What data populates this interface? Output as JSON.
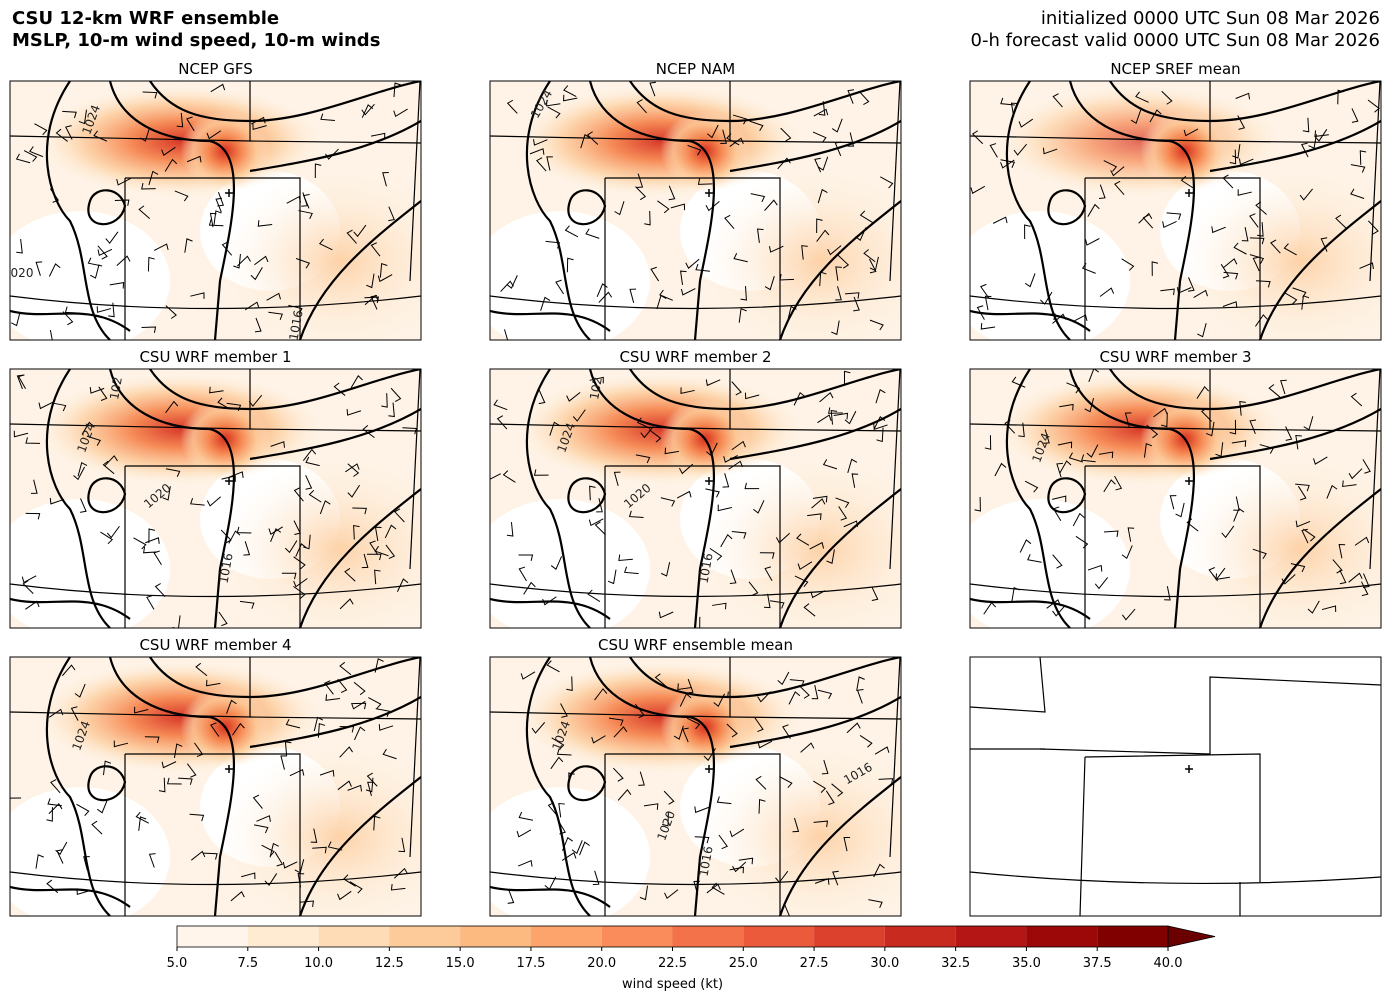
{
  "header": {
    "title_lines": [
      "CSU 12-km WRF ensemble",
      "MSLP, 10-m wind speed, 10-m winds"
    ],
    "init_lines": [
      "initialized 0000 UTC Sun 08 Mar 2026",
      "0-h forecast valid 0000 UTC Sun 08 Mar 2026"
    ]
  },
  "panels": [
    {
      "title": "NCEP GFS",
      "contour_labels": [
        "1024",
        "020",
        "1016"
      ]
    },
    {
      "title": "NCEP NAM",
      "contour_labels": [
        "1024"
      ]
    },
    {
      "title": "NCEP SREF mean",
      "contour_labels": []
    },
    {
      "title": "CSU WRF member 1",
      "contour_labels": [
        "102",
        "1024",
        "1020",
        "1016"
      ]
    },
    {
      "title": "CSU WRF member 2",
      "contour_labels": [
        "102",
        "1024",
        "1020",
        "1016"
      ]
    },
    {
      "title": "CSU WRF member 3",
      "contour_labels": [
        "1024"
      ]
    },
    {
      "title": "CSU WRF member 4",
      "contour_labels": [
        "1024"
      ]
    },
    {
      "title": "CSU WRF ensemble mean",
      "contour_labels": [
        "1024",
        "1020",
        "1016",
        "1016"
      ]
    }
  ],
  "colorbar": {
    "label": "wind speed (kt)",
    "ticks": [
      {
        "value": 5,
        "label": "5.0"
      },
      {
        "value": 7.5,
        "label": "7.5"
      },
      {
        "value": 10,
        "label": "10.0"
      },
      {
        "value": 12.5,
        "label": "12.5"
      },
      {
        "value": 15,
        "label": "15.0"
      },
      {
        "value": 17.5,
        "label": "17.5"
      },
      {
        "value": 20,
        "label": "20.0"
      },
      {
        "value": 22.5,
        "label": "22.5"
      },
      {
        "value": 25,
        "label": "25.0"
      },
      {
        "value": 27.5,
        "label": "27.5"
      },
      {
        "value": 30,
        "label": "30.0"
      },
      {
        "value": 32.5,
        "label": "32.5"
      },
      {
        "value": 35,
        "label": "35.0"
      },
      {
        "value": 37.5,
        "label": "37.5"
      },
      {
        "value": 40,
        "label": "40.0"
      }
    ],
    "colors": [
      "#fff5eb",
      "#feebd2",
      "#fddcb6",
      "#fdcb99",
      "#fcb980",
      "#fca46c",
      "#f98c5a",
      "#f37249",
      "#ea5a3b",
      "#dc412d",
      "#c92a20",
      "#b41515",
      "#9c0707",
      "#800000"
    ],
    "extend_color": "#6b0000"
  }
}
